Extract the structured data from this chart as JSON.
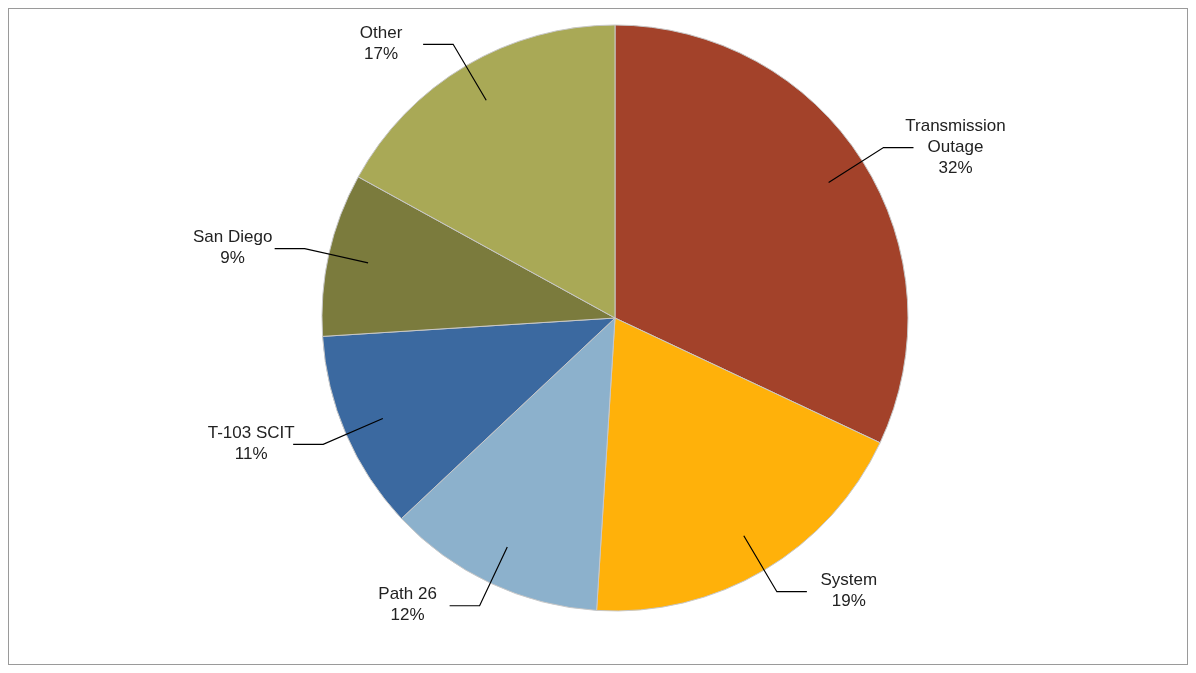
{
  "chart_data": {
    "type": "pie",
    "categories": [
      "Transmission Outage",
      "System",
      "Path 26",
      "T-103 SCIT",
      "San Diego",
      "Other"
    ],
    "values": [
      32,
      19,
      12,
      11,
      9,
      17
    ],
    "value_labels": [
      "32%",
      "19%",
      "12%",
      "11%",
      "9%",
      "17%"
    ],
    "colors": [
      "#a3422a",
      "#ffb10a",
      "#8cb1cc",
      "#3b69a0",
      "#7b7b3d",
      "#a9a956"
    ]
  }
}
